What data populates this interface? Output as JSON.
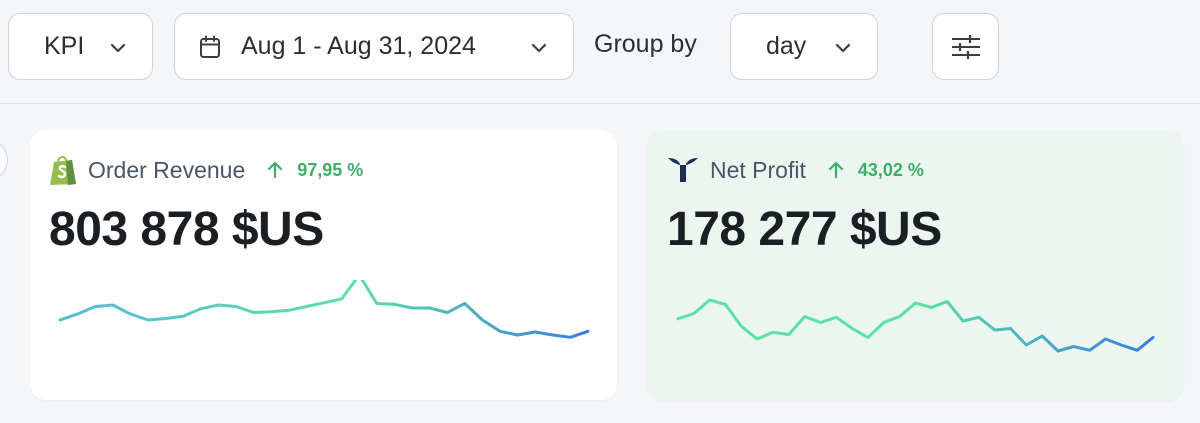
{
  "toolbar": {
    "kpi_label": "KPI",
    "date_range": "Aug 1 - Aug 31, 2024",
    "group_by_label": "Group by",
    "group_by_value": "day"
  },
  "cards": [
    {
      "title": "Order Revenue",
      "icon": "shopify-bag-icon",
      "trend_direction": "up",
      "trend_value": "97,95 %",
      "value": "803 878 $US",
      "background": "#ffffff",
      "sparkline": [
        0.2,
        0.28,
        0.38,
        0.4,
        0.28,
        0.2,
        0.22,
        0.25,
        0.35,
        0.4,
        0.38,
        0.3,
        0.31,
        0.33,
        0.38,
        0.43,
        0.48,
        0.8,
        0.42,
        0.41,
        0.36,
        0.36,
        0.3,
        0.42,
        0.2,
        0.05,
        0.0,
        0.04,
        0.0,
        -0.03,
        0.05
      ]
    },
    {
      "title": "Net Profit",
      "icon": "triple-whale-icon",
      "trend_direction": "up",
      "trend_value": "43,02 %",
      "value": "178 277 $US",
      "background": "#eaf6ef",
      "sparkline": [
        0.55,
        0.62,
        0.8,
        0.74,
        0.45,
        0.28,
        0.37,
        0.34,
        0.58,
        0.5,
        0.57,
        0.42,
        0.3,
        0.5,
        0.58,
        0.76,
        0.7,
        0.78,
        0.52,
        0.57,
        0.4,
        0.42,
        0.2,
        0.32,
        0.12,
        0.18,
        0.13,
        0.28,
        0.2,
        0.13,
        0.3
      ]
    }
  ],
  "colors": {
    "trend_up": "#3fae6a",
    "spark_start": "#56b9d7",
    "spark_peak": "#5ee0a3",
    "spark_end": "#3b7de0",
    "shopify_green": "#95bf47",
    "whale_navy": "#1d2f52"
  }
}
